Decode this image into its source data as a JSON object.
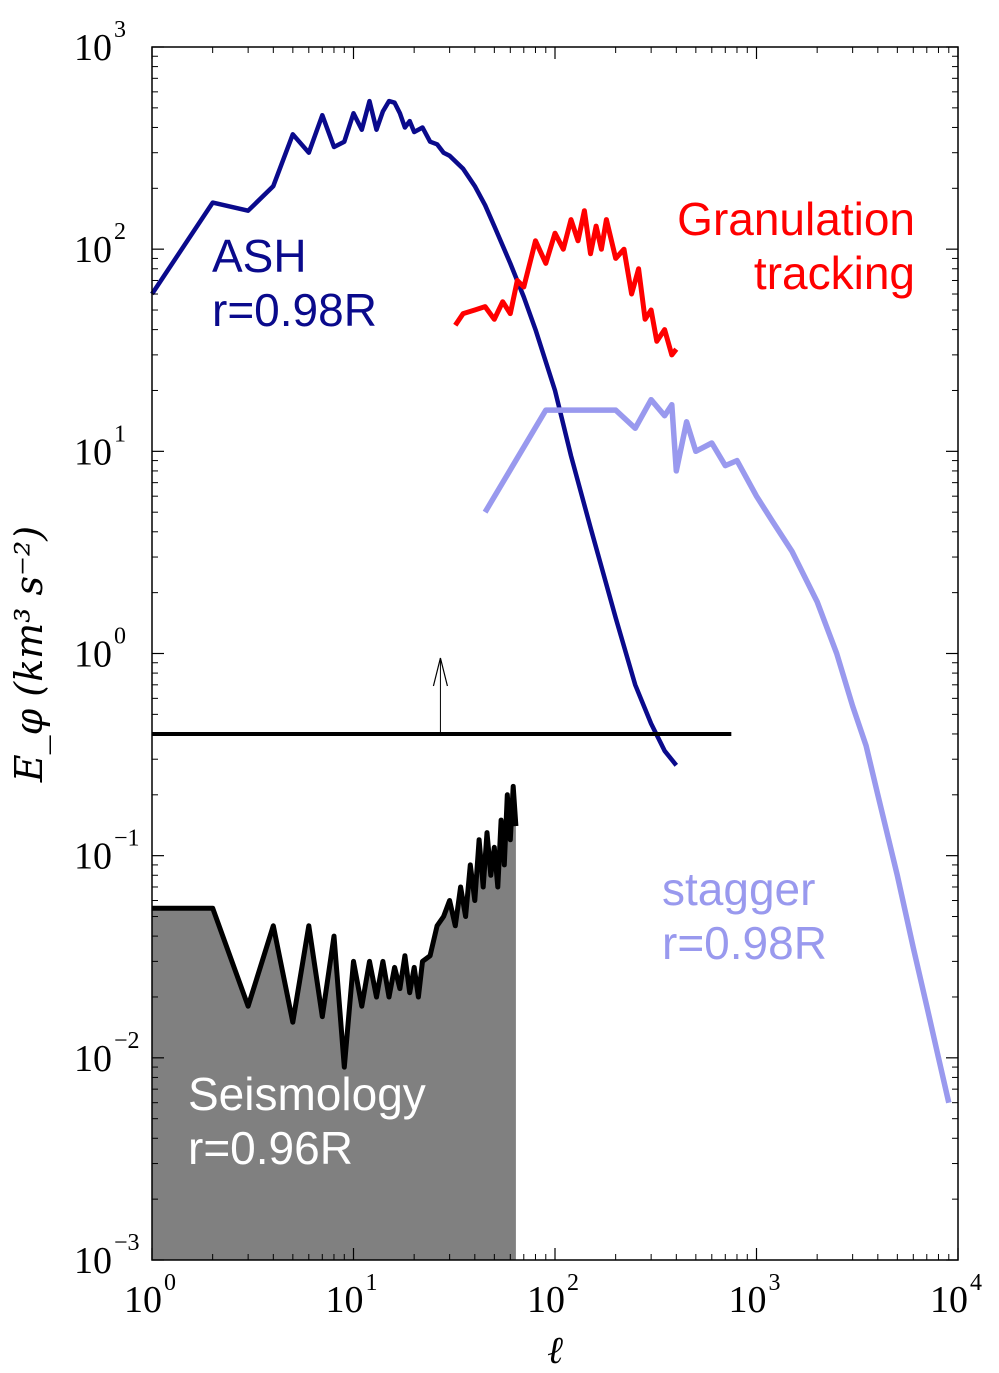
{
  "chart_data": {
    "type": "line",
    "xscale": "log",
    "yscale": "log",
    "xlim": [
      1,
      10000
    ],
    "ylim": [
      0.001,
      1000
    ],
    "xlabel": "ℓ",
    "ylabel": "E_φ (km³ s⁻²)",
    "x_ticks": [
      {
        "value": 1,
        "label": "10",
        "exp": "0"
      },
      {
        "value": 10,
        "label": "10",
        "exp": "1"
      },
      {
        "value": 100,
        "label": "10",
        "exp": "2"
      },
      {
        "value": 1000,
        "label": "10",
        "exp": "3"
      },
      {
        "value": 10000,
        "label": "10",
        "exp": "4"
      }
    ],
    "y_ticks": [
      {
        "value": 0.001,
        "label": "10",
        "exp": "−3"
      },
      {
        "value": 0.01,
        "label": "10",
        "exp": "−2"
      },
      {
        "value": 0.1,
        "label": "10",
        "exp": "−1"
      },
      {
        "value": 1,
        "label": "10",
        "exp": "0"
      },
      {
        "value": 10,
        "label": "10",
        "exp": "1"
      },
      {
        "value": 100,
        "label": "10",
        "exp": "2"
      },
      {
        "value": 1000,
        "label": "10",
        "exp": "3"
      }
    ],
    "series": [
      {
        "name": "ASH",
        "color": "#0a0a8c",
        "x": [
          1,
          2,
          3,
          4,
          5,
          6,
          7,
          8,
          9,
          10,
          11,
          12,
          13,
          14,
          15,
          16,
          17,
          18,
          19,
          20,
          22,
          24,
          26,
          28,
          30,
          35,
          40,
          45,
          50,
          60,
          70,
          80,
          100,
          120,
          150,
          200,
          250,
          300,
          350,
          400
        ],
        "y": [
          60,
          170,
          155,
          205,
          370,
          300,
          460,
          320,
          340,
          470,
          390,
          540,
          390,
          480,
          540,
          530,
          470,
          400,
          430,
          380,
          400,
          340,
          330,
          300,
          290,
          250,
          205,
          165,
          130,
          85,
          58,
          40,
          20,
          9.5,
          4.2,
          1.5,
          0.7,
          0.45,
          0.33,
          0.28
        ]
      },
      {
        "name": "Granulation tracking",
        "color": "#ff0000",
        "x": [
          32,
          35,
          40,
          45,
          50,
          55,
          60,
          65,
          70,
          80,
          90,
          100,
          110,
          120,
          130,
          140,
          150,
          160,
          170,
          180,
          200,
          220,
          240,
          260,
          280,
          300,
          320,
          350,
          380,
          400
        ],
        "y": [
          42,
          48,
          50,
          52,
          45,
          55,
          48,
          70,
          65,
          110,
          85,
          120,
          100,
          140,
          110,
          155,
          95,
          130,
          100,
          140,
          90,
          100,
          60,
          80,
          45,
          50,
          35,
          40,
          30,
          32
        ]
      },
      {
        "name": "stagger",
        "color": "#9999ee",
        "x": [
          45,
          90,
          200,
          250,
          300,
          350,
          380,
          400,
          450,
          500,
          600,
          700,
          800,
          1000,
          1200,
          1500,
          2000,
          2500,
          3000,
          3500,
          4000,
          5000,
          6000,
          7000,
          8000,
          9000
        ],
        "y": [
          5,
          16,
          16,
          13,
          18,
          15,
          17,
          8,
          14,
          10,
          11,
          8.5,
          9,
          6,
          4.5,
          3.2,
          1.8,
          1.0,
          0.55,
          0.35,
          0.2,
          0.08,
          0.035,
          0.018,
          0.01,
          0.006
        ]
      },
      {
        "name": "Seismology",
        "color": "#000000",
        "x": [
          1,
          2,
          3,
          4,
          5,
          6,
          7,
          8,
          9,
          10,
          11,
          12,
          13,
          14,
          15,
          16,
          17,
          18,
          19,
          20,
          21,
          22,
          24,
          26,
          28,
          30,
          32,
          34,
          36,
          38,
          40,
          42,
          44,
          46,
          48,
          50,
          52,
          54,
          56,
          58,
          60,
          62,
          64
        ],
        "y": [
          0.055,
          0.055,
          0.018,
          0.045,
          0.015,
          0.045,
          0.016,
          0.04,
          0.009,
          0.03,
          0.018,
          0.03,
          0.02,
          0.03,
          0.02,
          0.028,
          0.022,
          0.032,
          0.021,
          0.028,
          0.02,
          0.03,
          0.032,
          0.045,
          0.05,
          0.06,
          0.045,
          0.07,
          0.05,
          0.09,
          0.06,
          0.12,
          0.07,
          0.13,
          0.08,
          0.11,
          0.07,
          0.15,
          0.09,
          0.2,
          0.12,
          0.22,
          0.14
        ]
      }
    ],
    "threshold": {
      "y": 0.4,
      "xmin": 1,
      "xmax": 750,
      "arrow_x": 27,
      "arrow_to": 0.95
    },
    "annotations": [
      {
        "lines": [
          "ASH",
          "r=0.98R"
        ],
        "color": "#0a0a8c"
      },
      {
        "lines": [
          "Granulation",
          "tracking"
        ],
        "color": "#ff0000"
      },
      {
        "lines": [
          "stagger",
          "r=0.98R"
        ],
        "color": "#9999ee"
      },
      {
        "lines": [
          "Seismology",
          "r=0.96R"
        ],
        "color": "#ffffff"
      }
    ]
  }
}
